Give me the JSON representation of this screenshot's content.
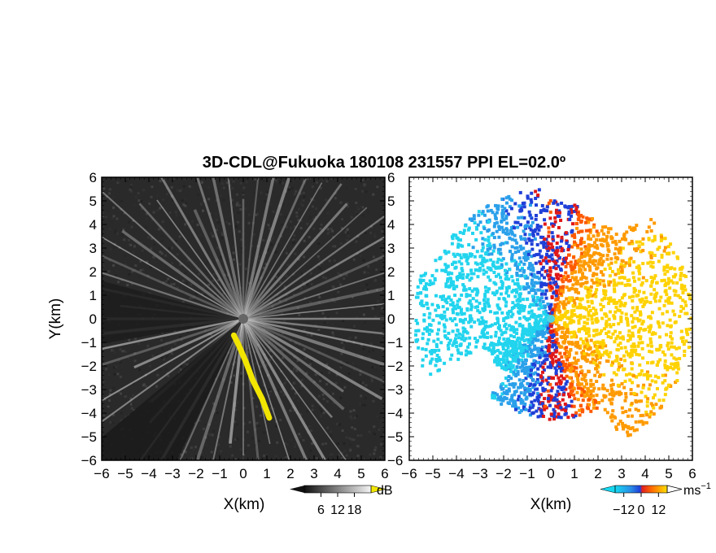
{
  "title": "3D-CDL@Fukuoka 180108 231557 PPI EL=02.0º",
  "colors": {
    "background": "#ffffff",
    "panel_left_bg": "#2a2a2a",
    "highlight": "#f2e600",
    "velocity_neg": "#1f3fd8",
    "velocity_zero": "#ff4a00",
    "velocity_pos": "#ffd200"
  },
  "chart_data": [
    {
      "type": "heatmap",
      "panel": "left",
      "field": "SNR",
      "xlabel": "X(km)",
      "ylabel": "Y(km)",
      "xlim": [
        -6,
        6
      ],
      "ylim": [
        -6,
        6
      ],
      "xticks": [
        "−6",
        "−5",
        "−4",
        "−3",
        "−2",
        "−1",
        "0",
        "1",
        "2",
        "3",
        "4",
        "5",
        "6"
      ],
      "yticks": [
        "6",
        "5",
        "4",
        "3",
        "2",
        "1",
        "0",
        "−1",
        "−2",
        "−3",
        "−4",
        "−5",
        "−6"
      ],
      "colorbar": {
        "unit": "dB",
        "ticks": [
          "6",
          "12",
          "18"
        ],
        "range": [
          0,
          24
        ],
        "colormap": "grayscale"
      },
      "highlight_band": {
        "color": "yellow",
        "path_xy_km": [
          [
            -0.4,
            -0.7
          ],
          [
            -0.2,
            -1.1
          ],
          [
            0.1,
            -1.8
          ],
          [
            0.4,
            -2.6
          ],
          [
            0.8,
            -3.4
          ],
          [
            1.1,
            -4.2
          ]
        ]
      }
    },
    {
      "type": "heatmap",
      "panel": "right",
      "field": "Doppler velocity",
      "xlabel": "X(km)",
      "ylabel": "",
      "xlim": [
        -6,
        6
      ],
      "ylim": [
        -6,
        6
      ],
      "xticks": [
        "−6",
        "−5",
        "−4",
        "−3",
        "−2",
        "−1",
        "0",
        "1",
        "2",
        "3",
        "4",
        "5",
        "6"
      ],
      "colorbar": {
        "unit": "ms",
        "unit_exp": "−1",
        "ticks": [
          "−12",
          "0",
          "12"
        ],
        "range": [
          -18,
          18
        ],
        "colormap": "cyan-blue-red-orange-yellow"
      }
    }
  ]
}
